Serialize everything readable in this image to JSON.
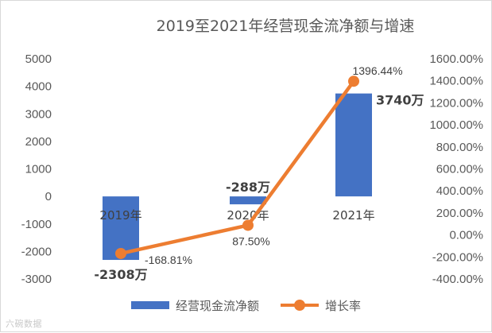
{
  "chart_data": {
    "type": "bar+line",
    "title": "2019至2021年经营现金流净额与增速",
    "categories": [
      "2019年",
      "2020年",
      "2021年"
    ],
    "series": [
      {
        "name": "经营现金流净额",
        "type": "bar",
        "axis": "left",
        "values": [
          -2308,
          -288,
          3740
        ],
        "data_labels": [
          "-2308万",
          "-288万",
          "3740万"
        ],
        "color": "#4472c4"
      },
      {
        "name": "增长率",
        "type": "line",
        "axis": "right",
        "values": [
          -168.81,
          87.5,
          1396.44
        ],
        "data_labels": [
          "-168.81%",
          "87.50%",
          "1396.44%"
        ],
        "color": "#ed7d31"
      }
    ],
    "y_left": {
      "min": -3000,
      "max": 5000,
      "ticks": [
        5000,
        4000,
        3000,
        2000,
        1000,
        0,
        -1000,
        -2000,
        -3000
      ]
    },
    "y_right": {
      "min": -400,
      "max": 1600,
      "ticks": [
        "1600.00%",
        "1400.00%",
        "1200.00%",
        "1000.00%",
        "800.00%",
        "600.00%",
        "400.00%",
        "200.00%",
        "0.00%",
        "-200.00%",
        "-400.00%"
      ]
    },
    "grid": false,
    "legend_position": "bottom"
  },
  "watermark": "六碗数据"
}
